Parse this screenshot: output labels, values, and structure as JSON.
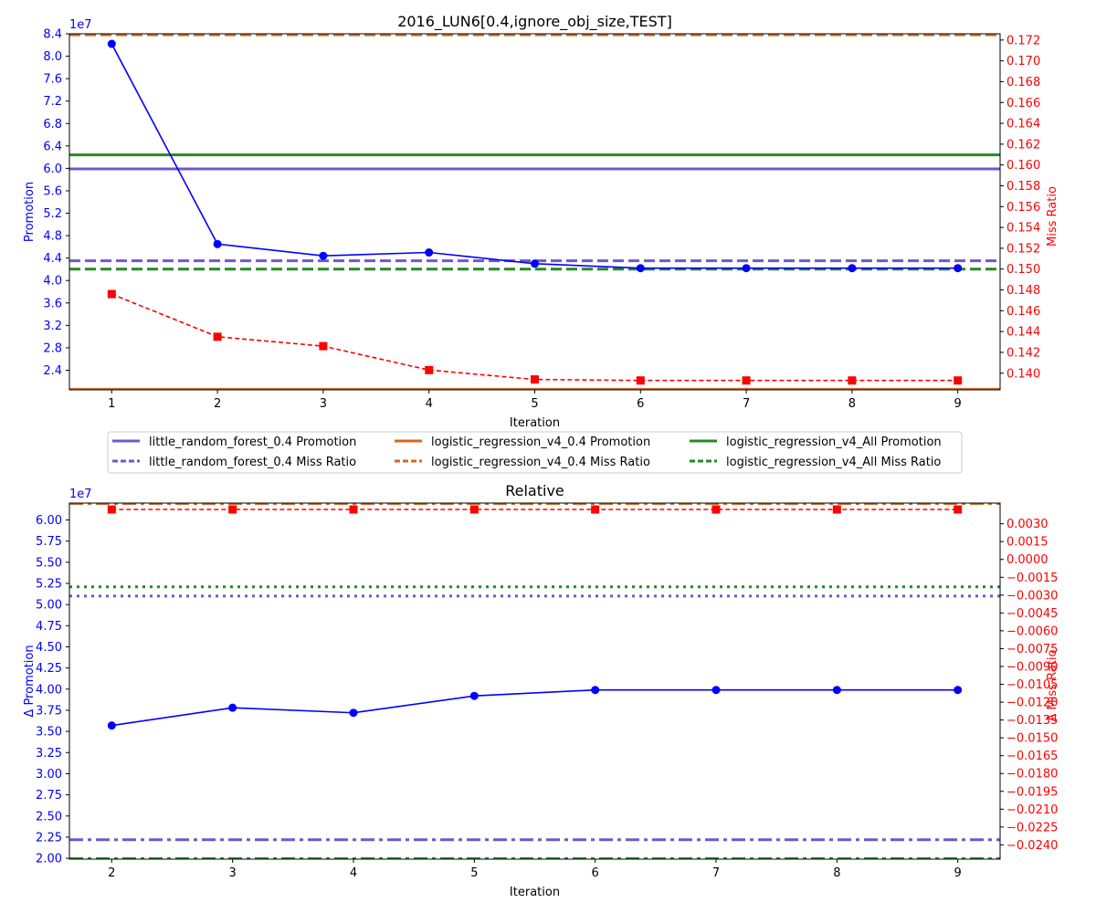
{
  "colors": {
    "promotion_axis": "#0000ff",
    "miss_axis": "#ff0000",
    "little_random_forest": "#6a5acd",
    "logistic_regression_v4_04": "#d2691e",
    "logistic_regression_v4_all": "#228b22"
  },
  "chart_data": [
    {
      "type": "line",
      "title": "2016_LUN6[0.4,ignore_obj_size,TEST]",
      "xlabel": "Iteration",
      "ylabel_left": "Promotion",
      "ylabel_right": "Miss Ratio",
      "left_offset_text": "1e7",
      "x": [
        1,
        2,
        3,
        4,
        5,
        6,
        7,
        8,
        9
      ],
      "xlim": [
        0.6,
        9.4
      ],
      "ylim_left": [
        2.05,
        8.4
      ],
      "ylim_right": [
        0.1384,
        0.1726
      ],
      "x_ticks": [
        "1",
        "2",
        "3",
        "4",
        "5",
        "6",
        "7",
        "8",
        "9"
      ],
      "left_ticks": [
        "2.4",
        "2.8",
        "3.2",
        "3.6",
        "4.0",
        "4.4",
        "4.8",
        "5.2",
        "5.6",
        "6.0",
        "6.4",
        "6.8",
        "7.2",
        "7.6",
        "8.0",
        "8.4"
      ],
      "right_ticks": [
        "0.140",
        "0.142",
        "0.144",
        "0.146",
        "0.148",
        "0.150",
        "0.152",
        "0.154",
        "0.156",
        "0.158",
        "0.160",
        "0.162",
        "0.164",
        "0.166",
        "0.168",
        "0.170",
        "0.172"
      ],
      "series": [
        {
          "axis": "left",
          "values": [
            8.22,
            4.65,
            4.44,
            4.5,
            4.3,
            4.22,
            4.22,
            4.22,
            4.22
          ],
          "color": "#0000ff",
          "marker": "circle",
          "dash": "solid"
        },
        {
          "axis": "right",
          "values": [
            0.1476,
            0.1435,
            0.1426,
            0.1403,
            0.1394,
            0.1393,
            0.1393,
            0.1393,
            0.1393
          ],
          "color": "#ff0000",
          "marker": "square",
          "dash": "dashed"
        }
      ],
      "reference_lines": [
        {
          "name": "little_random_forest_0.4 Promotion",
          "axis": "left",
          "value": 5.99,
          "color": "#6a5acd",
          "style": "solid"
        },
        {
          "name": "little_random_forest_0.4 Miss Ratio",
          "axis": "right",
          "value": 0.1508,
          "color": "#6a5acd",
          "style": "dashed"
        },
        {
          "name": "logistic_regression_v4_0.4 Promotion",
          "axis": "left",
          "value": 2.06,
          "color": "#d2691e",
          "style": "solid"
        },
        {
          "name": "logistic_regression_v4_0.4 Miss Ratio",
          "axis": "right",
          "value": 0.1725,
          "color": "#d2691e",
          "style": "dashed"
        },
        {
          "name": "logistic_regression_v4_All Promotion",
          "axis": "left",
          "value": 6.24,
          "color": "#228b22",
          "style": "solid"
        },
        {
          "name": "logistic_regression_v4_All Miss Ratio",
          "axis": "right",
          "value": 0.15,
          "color": "#228b22",
          "style": "dashed"
        }
      ],
      "legend": {
        "placement": "below",
        "columns": [
          [
            "little_random_forest_0.4 Promotion",
            "little_random_forest_0.4 Miss Ratio"
          ],
          [
            "logistic_regression_v4_0.4 Promotion",
            "logistic_regression_v4_0.4 Miss Ratio"
          ],
          [
            "logistic_regression_v4_All Promotion",
            "logistic_regression_v4_All Miss Ratio"
          ]
        ]
      },
      "grid": false
    },
    {
      "type": "line",
      "title": "Relative",
      "xlabel": "Iteration",
      "ylabel_left": "Δ Promotion",
      "ylabel_right": "Δ Miss Ratio",
      "left_offset_text": "1e7",
      "x": [
        2,
        3,
        4,
        5,
        6,
        7,
        8,
        9
      ],
      "xlim": [
        1.65,
        9.35
      ],
      "ylim_left": [
        1.99,
        6.2
      ],
      "ylim_right": [
        -0.0252,
        0.00474
      ],
      "x_ticks": [
        "2",
        "3",
        "4",
        "5",
        "6",
        "7",
        "8",
        "9"
      ],
      "left_ticks": [
        "2.00",
        "2.25",
        "2.50",
        "2.75",
        "3.00",
        "3.25",
        "3.50",
        "3.75",
        "4.00",
        "4.25",
        "4.50",
        "4.75",
        "5.00",
        "5.25",
        "5.50",
        "5.75",
        "6.00"
      ],
      "right_ticks": [
        "−0.0240",
        "−0.0225",
        "−0.0210",
        "−0.0195",
        "−0.0180",
        "−0.0165",
        "−0.0150",
        "−0.0135",
        "−0.0120",
        "−0.0105",
        "−0.0090",
        "−0.0075",
        "−0.0060",
        "−0.0045",
        "−0.0030",
        "−0.0015",
        "0.0000",
        "0.0015",
        "0.0030"
      ],
      "series": [
        {
          "axis": "left",
          "values": [
            3.57,
            3.78,
            3.72,
            3.92,
            3.99,
            3.99,
            3.99,
            3.99
          ],
          "color": "#0000ff",
          "marker": "circle",
          "dash": "solid"
        },
        {
          "axis": "right",
          "values": [
            0.0042,
            0.0042,
            0.0042,
            0.0042,
            0.0042,
            0.0042,
            0.0042,
            0.0042
          ],
          "color": "#ff0000",
          "marker": "square",
          "dash": "dashed"
        }
      ],
      "reference_lines": [
        {
          "axis": "left",
          "value": 5.1,
          "color": "#6a5acd",
          "style": "dotted"
        },
        {
          "axis": "left",
          "value": 5.21,
          "color": "#228b22",
          "style": "dotted"
        },
        {
          "axis": "left",
          "value": 2.22,
          "color": "#6a5acd",
          "style": "dashdot"
        },
        {
          "axis": "left",
          "value": 1.995,
          "color": "#228b22",
          "style": "dashdot"
        },
        {
          "axis": "right",
          "value": 0.0047,
          "color": "#d2691e",
          "style": "dashdot"
        }
      ],
      "grid": false
    }
  ]
}
